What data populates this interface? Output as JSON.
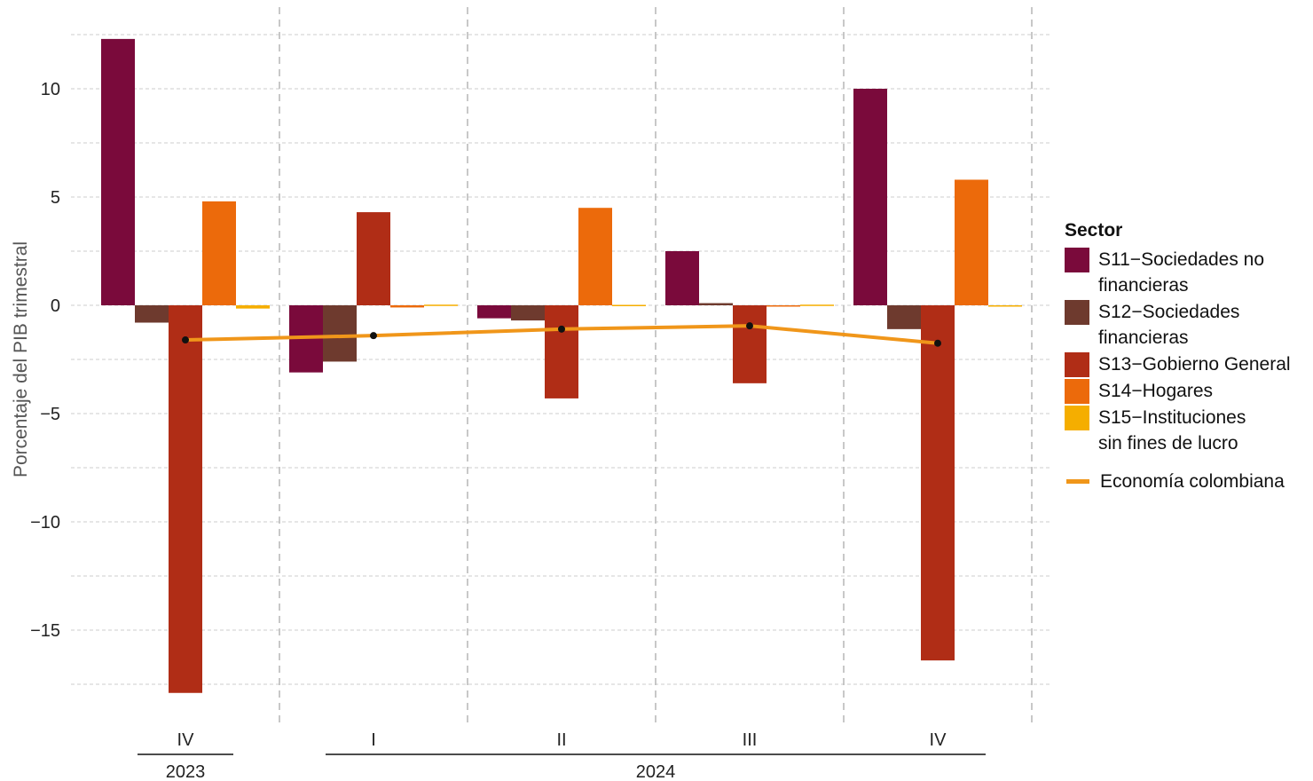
{
  "chart_data": {
    "type": "bar",
    "ylabel": "Porcentaje del PIB trimestral",
    "ylim": [
      -18.5,
      12.5
    ],
    "yticks": [
      10,
      5,
      0,
      -5,
      -10,
      -15
    ],
    "ytick_labels": [
      "10",
      "5",
      "0",
      "−5",
      "−10",
      "−15"
    ],
    "grid": true,
    "categories": [
      "IV",
      "I",
      "II",
      "III",
      "IV"
    ],
    "year_groups": [
      {
        "label": "2023",
        "start": 0,
        "end": 0
      },
      {
        "label": "2024",
        "start": 1,
        "end": 4
      }
    ],
    "legend_title": "Sector",
    "legend_position": "right",
    "series": [
      {
        "name": "S11−Sociedades no\n        financieras",
        "color": "#7a0a3b",
        "values": [
          12.3,
          -3.1,
          -0.6,
          2.5,
          10.0
        ]
      },
      {
        "name": "S12−Sociedades\n        financieras",
        "color": "#6e3a2e",
        "values": [
          -0.8,
          -2.6,
          -0.7,
          0.1,
          -1.1
        ]
      },
      {
        "name": "S13−Gobierno General",
        "color": "#b02d16",
        "values": [
          -17.9,
          4.3,
          -4.3,
          -3.6,
          -16.4
        ]
      },
      {
        "name": "S14−Hogares",
        "color": "#ec6a0b",
        "values": [
          4.8,
          -0.1,
          4.5,
          -0.05,
          5.8
        ]
      },
      {
        "name": "S15−Instituciones\n        sin fines de lucro",
        "color": "#f5ae00",
        "values": [
          -0.15,
          0.03,
          0.02,
          0.03,
          -0.05
        ]
      }
    ],
    "line": {
      "name": "Economía colombiana",
      "color": "#f0961a",
      "values": [
        -1.6,
        -1.4,
        -1.1,
        -0.95,
        -1.75
      ]
    }
  }
}
